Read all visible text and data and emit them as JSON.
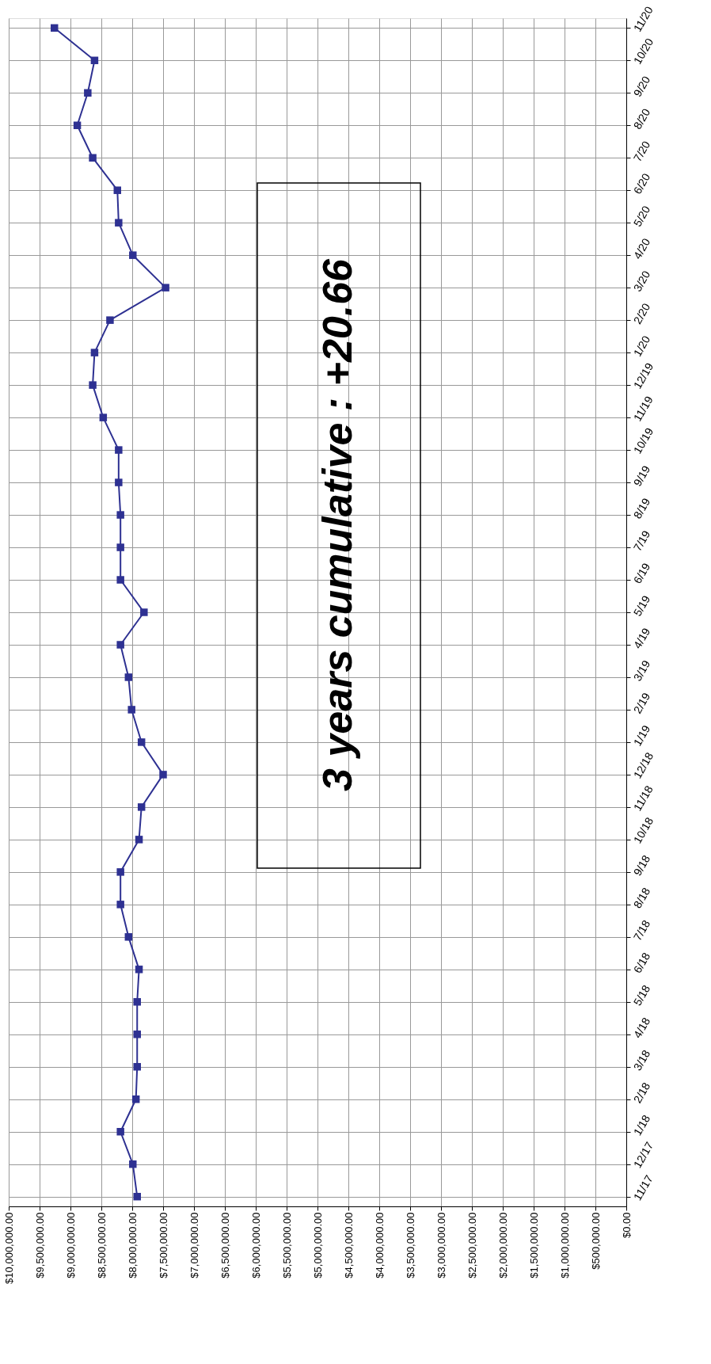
{
  "chart_data": {
    "type": "line",
    "orientation": "horizontal",
    "categories": [
      "11/20",
      "10/20",
      "9/20",
      "8/20",
      "7/20",
      "6/20",
      "5/20",
      "4/20",
      "3/20",
      "2/20",
      "1/20",
      "12/19",
      "11/19",
      "10/19",
      "9/19",
      "8/19",
      "7/19",
      "6/19",
      "5/19",
      "4/19",
      "3/19",
      "2/19",
      "1/19",
      "12/18",
      "11/18",
      "10/18",
      "9/18",
      "8/18",
      "7/18",
      "6/18",
      "5/18",
      "4/18",
      "3/18",
      "2/18",
      "1/18",
      "12/17",
      "11/17"
    ],
    "series": [
      {
        "color": "#2e3192",
        "values": [
          9260000,
          8610000,
          8720000,
          8890000,
          8640000,
          8240000,
          8220000,
          7990000,
          7460000,
          8360000,
          8610000,
          8640000,
          8470000,
          8220000,
          8220000,
          8190000,
          8190000,
          8190000,
          7810000,
          8190000,
          8060000,
          8010000,
          7850000,
          7500000,
          7850000,
          7890000,
          8190000,
          8190000,
          8060000,
          7890000,
          7920000,
          7920000,
          7920000,
          7940000,
          8190000,
          7990000,
          7920000
        ]
      }
    ],
    "xlim": [
      10000000,
      0
    ],
    "xticks": [
      {
        "value": 10000000,
        "label": "$10,000,000.00"
      },
      {
        "value": 9500000,
        "label": "$9,500,000.00"
      },
      {
        "value": 9000000,
        "label": "$9,000,000.00"
      },
      {
        "value": 8500000,
        "label": "$8,500,000.00"
      },
      {
        "value": 8000000,
        "label": "$8,000,000.00"
      },
      {
        "value": 7500000,
        "label": "$7,500,000.00"
      },
      {
        "value": 7000000,
        "label": "$7,000,000.00"
      },
      {
        "value": 6500000,
        "label": "$6,500,000.00"
      },
      {
        "value": 6000000,
        "label": "$6,000,000.00"
      },
      {
        "value": 5500000,
        "label": "$5,500,000.00"
      },
      {
        "value": 5000000,
        "label": "$5,000,000.00"
      },
      {
        "value": 4500000,
        "label": "$4,500,000.00"
      },
      {
        "value": 4000000,
        "label": "$4,000,000.00"
      },
      {
        "value": 3500000,
        "label": "$3,500,000.00"
      },
      {
        "value": 3000000,
        "label": "$3,000,000.00"
      },
      {
        "value": 2500000,
        "label": "$2,500,000.00"
      },
      {
        "value": 2000000,
        "label": "$2,000,000.00"
      },
      {
        "value": 1500000,
        "label": "$1,500,000.00"
      },
      {
        "value": 1000000,
        "label": "$1,000,000.00"
      },
      {
        "value": 500000,
        "label": "$500,000.00"
      },
      {
        "value": 0,
        "label": "$0.00"
      }
    ],
    "grid": true,
    "marker": "square",
    "line_style": "solid",
    "annotations": [
      "3 years cumulative : +20.66"
    ]
  }
}
